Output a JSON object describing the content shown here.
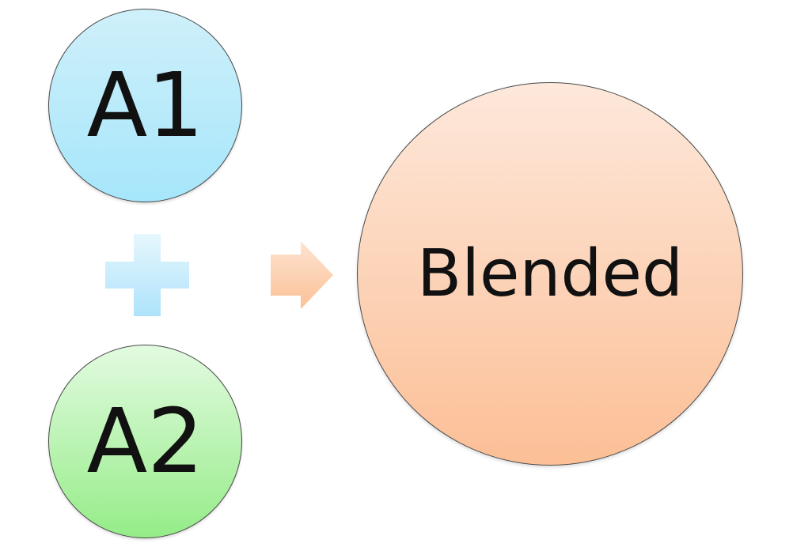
{
  "diagram": {
    "inputs": [
      {
        "label": "A1",
        "color": "#bdeefb"
      },
      {
        "label": "A2",
        "color": "#bff3b5"
      }
    ],
    "operator_icon": "plus-icon",
    "result_icon": "right-arrow-icon",
    "output": {
      "label": "Blended",
      "color": "#fdd2b5"
    }
  }
}
